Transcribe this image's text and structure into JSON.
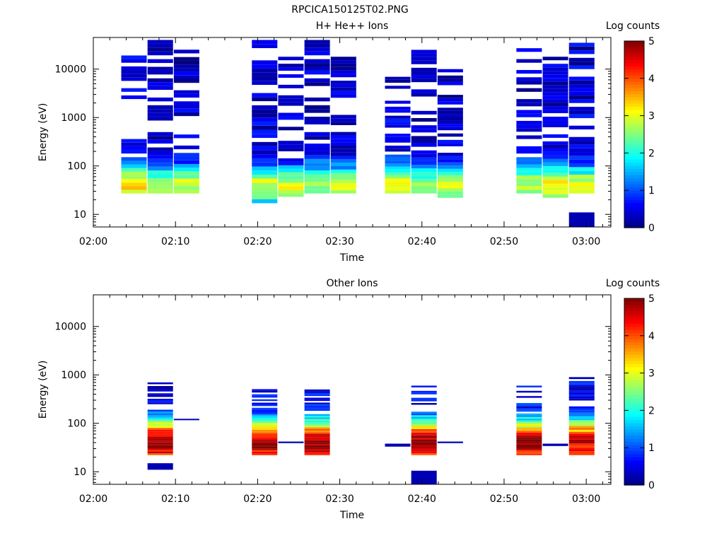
{
  "figure": {
    "filename_title": "RPCICA150125T02.PNG"
  },
  "colorbar": {
    "label": "Log counts",
    "ticks": [
      "0",
      "1",
      "2",
      "3",
      "4",
      "5"
    ],
    "range": [
      0,
      5
    ]
  },
  "chart_data": [
    {
      "type": "heatmap",
      "title": "H+ He++ Ions",
      "xlabel": "Time",
      "ylabel": "Energy (eV)",
      "x_ticks": [
        "02:00",
        "02:10",
        "02:20",
        "02:30",
        "02:40",
        "02:50",
        "03:00"
      ],
      "y_ticks": [
        "10",
        "100",
        "1000",
        "10000"
      ],
      "y_scale": "log",
      "ylim": [
        5.5,
        45000
      ],
      "xlim": [
        "02:00",
        "03:03"
      ],
      "colorbar_label": "Log counts",
      "cmap_range": [
        0,
        5
      ],
      "columns": [
        {
          "start": "02:03.4",
          "end": "02:06.5",
          "emin": 27,
          "emax": 27000,
          "peak_e": 38,
          "peak_v": 2.9,
          "spread": 0.45,
          "level": 0.8,
          "gap": [
            400,
            2300
          ]
        },
        {
          "start": "02:06.6",
          "end": "02:09.7",
          "emin": 27,
          "emax": 40000,
          "peak_e": 40,
          "peak_v": 2.4,
          "spread": 0.4,
          "level": 0.6,
          "gap": [
            600,
            900
          ]
        },
        {
          "start": "02:09.8",
          "end": "02:12.9",
          "emin": 27,
          "emax": 30000,
          "peak_e": 40,
          "peak_v": 2.6,
          "spread": 0.4,
          "level": 0.7,
          "gap": [
            450,
            1000
          ]
        },
        {
          "start": "02:19.3",
          "end": "02:22.4",
          "emin": 17,
          "emax": 40000,
          "peak_e": 40,
          "peak_v": 2.5,
          "spread": 0.4,
          "level": 0.8,
          "gap": []
        },
        {
          "start": "02:22.5",
          "end": "02:25.6",
          "emin": 23,
          "emax": 18000,
          "peak_e": 38,
          "peak_v": 2.6,
          "spread": 0.4,
          "level": 0.7,
          "gap": []
        },
        {
          "start": "02:25.7",
          "end": "02:28.8",
          "emin": 27,
          "emax": 40000,
          "peak_e": 40,
          "peak_v": 2.4,
          "spread": 0.45,
          "level": 0.7,
          "gap": []
        },
        {
          "start": "02:28.9",
          "end": "02:32.0",
          "emin": 27,
          "emax": 18000,
          "peak_e": 40,
          "peak_v": 2.5,
          "spread": 0.4,
          "level": 0.7,
          "gap": []
        },
        {
          "start": "02:35.5",
          "end": "02:38.6",
          "emin": 27,
          "emax": 8000,
          "peak_e": 40,
          "peak_v": 2.6,
          "spread": 0.45,
          "level": 0.8,
          "gap": []
        },
        {
          "start": "02:38.7",
          "end": "02:41.8",
          "emin": 27,
          "emax": 25000,
          "peak_e": 40,
          "peak_v": 2.3,
          "spread": 0.4,
          "level": 0.6,
          "gap": []
        },
        {
          "start": "02:41.9",
          "end": "02:45.0",
          "emin": 22,
          "emax": 10000,
          "peak_e": 40,
          "peak_v": 2.7,
          "spread": 0.4,
          "level": 0.7,
          "gap": []
        },
        {
          "start": "02:51.5",
          "end": "02:54.6",
          "emin": 27,
          "emax": 27000,
          "peak_e": 40,
          "peak_v": 2.4,
          "spread": 0.45,
          "level": 0.7,
          "gap": []
        },
        {
          "start": "02:54.7",
          "end": "02:57.8",
          "emin": 22,
          "emax": 18000,
          "peak_e": 40,
          "peak_v": 2.9,
          "spread": 0.4,
          "level": 0.7,
          "gap": []
        },
        {
          "start": "02:57.9",
          "end": "03:01.0",
          "emin": 27,
          "emax": 35000,
          "peak_e": 40,
          "peak_v": 2.5,
          "spread": 0.4,
          "level": 0.8,
          "gap": []
        },
        {
          "start": "02:57.9",
          "end": "03:01.0",
          "emin": 5.5,
          "emax": 11,
          "peak_e": 8,
          "peak_v": 0.1,
          "spread": 1,
          "level": 0.1,
          "gap": [],
          "solid": true
        }
      ]
    },
    {
      "type": "heatmap",
      "title": "Other Ions",
      "xlabel": "Time",
      "ylabel": "Energy (eV)",
      "x_ticks": [
        "02:00",
        "02:10",
        "02:20",
        "02:30",
        "02:40",
        "02:50",
        "03:00"
      ],
      "y_ticks": [
        "10",
        "100",
        "1000",
        "10000"
      ],
      "y_scale": "log",
      "ylim": [
        5.5,
        45000
      ],
      "xlim": [
        "02:00",
        "03:03"
      ],
      "colorbar_label": "Log counts",
      "cmap_range": [
        0,
        5
      ],
      "columns": [
        {
          "start": "02:06.6",
          "end": "02:09.7",
          "emin": 22,
          "emax": 700,
          "peak_e": 40,
          "peak_v": 4.6,
          "spread": 0.5,
          "level": 0.8,
          "gap": []
        },
        {
          "start": "02:06.6",
          "end": "02:09.7",
          "emin": 11,
          "emax": 15,
          "peak_e": 13,
          "peak_v": 0.1,
          "spread": 1,
          "level": 0.1,
          "gap": [],
          "solid": true
        },
        {
          "start": "02:09.8",
          "end": "02:12.9",
          "emin": 118,
          "emax": 124,
          "peak_e": 120,
          "peak_v": 0.1,
          "spread": 1,
          "level": 0.1,
          "gap": [],
          "solid": true
        },
        {
          "start": "02:19.3",
          "end": "02:22.4",
          "emin": 22,
          "emax": 550,
          "peak_e": 40,
          "peak_v": 4.5,
          "spread": 0.45,
          "level": 0.9,
          "gap": []
        },
        {
          "start": "02:22.5",
          "end": "02:25.6",
          "emin": 39,
          "emax": 42,
          "peak_e": 40,
          "peak_v": 0.1,
          "spread": 1,
          "level": 0.1,
          "gap": [],
          "solid": true
        },
        {
          "start": "02:25.7",
          "end": "02:28.8",
          "emin": 22,
          "emax": 500,
          "peak_e": 40,
          "peak_v": 4.6,
          "spread": 0.45,
          "level": 0.9,
          "gap": []
        },
        {
          "start": "02:35.5",
          "end": "02:38.6",
          "emin": 33,
          "emax": 38,
          "peak_e": 35,
          "peak_v": 0.1,
          "spread": 1,
          "level": 0.1,
          "gap": [],
          "solid": true
        },
        {
          "start": "02:38.7",
          "end": "02:41.8",
          "emin": 22,
          "emax": 600,
          "peak_e": 40,
          "peak_v": 4.6,
          "spread": 0.45,
          "level": 0.9,
          "gap": []
        },
        {
          "start": "02:38.7",
          "end": "02:41.8",
          "emin": 5.5,
          "emax": 10.5,
          "peak_e": 8,
          "peak_v": 0.1,
          "spread": 1,
          "level": 0.1,
          "gap": [],
          "solid": true
        },
        {
          "start": "02:41.9",
          "end": "02:45.0",
          "emin": 39,
          "emax": 42,
          "peak_e": 40,
          "peak_v": 0.1,
          "spread": 1,
          "level": 0.1,
          "gap": [],
          "solid": true
        },
        {
          "start": "02:51.5",
          "end": "02:54.6",
          "emin": 22,
          "emax": 600,
          "peak_e": 40,
          "peak_v": 4.5,
          "spread": 0.45,
          "level": 0.9,
          "gap": []
        },
        {
          "start": "02:54.7",
          "end": "02:57.8",
          "emin": 34,
          "emax": 38,
          "peak_e": 36,
          "peak_v": 0.1,
          "spread": 1,
          "level": 0.1,
          "gap": [],
          "solid": true
        },
        {
          "start": "02:57.9",
          "end": "03:01.0",
          "emin": 22,
          "emax": 900,
          "peak_e": 40,
          "peak_v": 4.0,
          "spread": 0.5,
          "level": 1.0,
          "gap": []
        }
      ]
    }
  ]
}
